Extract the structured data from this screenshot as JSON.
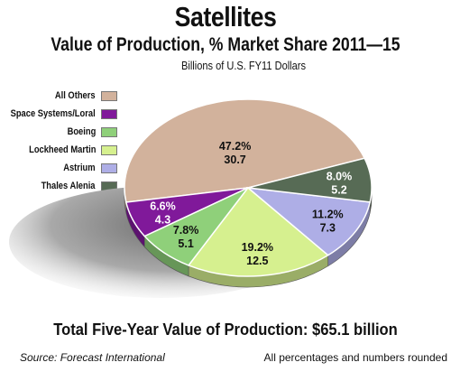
{
  "title": "Satellites",
  "subtitle": "Value of Production, % Market Share 2011—15",
  "units": "Billions of U.S. FY11 Dollars",
  "total": "Total Five-Year Value of Production: $65.1 billion",
  "source": "Source:  Forecast International",
  "note": "All percentages and numbers rounded",
  "chart_data": {
    "type": "pie",
    "title": "Satellites",
    "subtitle": "Value of Production, % Market Share 2011—15",
    "unit": "Billions of U.S. FY11 Dollars",
    "legend_position": "left",
    "slices": [
      {
        "name": "All Others",
        "percent": 47.2,
        "value": 30.7,
        "pct_label": "47.2%",
        "val_label": "30.7",
        "color": "#d2b29c"
      },
      {
        "name": "Space Systems/Loral",
        "percent": 6.6,
        "value": 4.3,
        "pct_label": "6.6%",
        "val_label": "4.3",
        "color": "#80199a"
      },
      {
        "name": "Boeing",
        "percent": 7.8,
        "value": 5.1,
        "pct_label": "7.8%",
        "val_label": "5.1",
        "color": "#8fd07a"
      },
      {
        "name": "Lockheed Martin",
        "percent": 19.2,
        "value": 12.5,
        "pct_label": "19.2%",
        "val_label": "12.5",
        "color": "#d6f08f"
      },
      {
        "name": "Astrium",
        "percent": 11.2,
        "value": 7.3,
        "pct_label": "11.2%",
        "val_label": "7.3",
        "color": "#aeaee6"
      },
      {
        "name": "Thales Alenia",
        "percent": 8.0,
        "value": 5.2,
        "pct_label": "8.0%",
        "val_label": "5.2",
        "color": "#576b55"
      }
    ]
  }
}
